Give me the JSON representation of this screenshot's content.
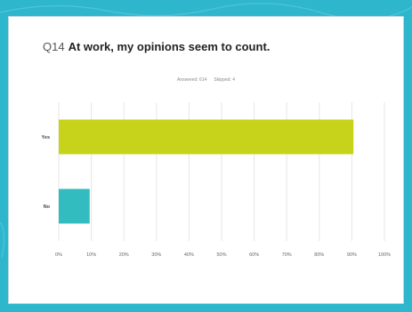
{
  "question": {
    "number": "Q14",
    "text": "At work, my opinions seem to count."
  },
  "meta": {
    "answered": "Answered: 614",
    "skipped": "Skipped: 4"
  },
  "colors": {
    "background": "#2db6cc",
    "grid": "#e6e6e6",
    "tick_label": "#666666"
  },
  "chart_data": {
    "type": "bar",
    "orientation": "horizontal",
    "title": "At work, my opinions seem to count.",
    "categories": [
      "Yes",
      "No"
    ],
    "values": [
      90.5,
      9.5
    ],
    "bar_colors": [
      "#c7d31b",
      "#33bcbf"
    ],
    "xlim": [
      0,
      100
    ],
    "x_ticks": [
      "0%",
      "10%",
      "20%",
      "30%",
      "40%",
      "50%",
      "60%",
      "70%",
      "80%",
      "90%",
      "100%"
    ],
    "grid": true,
    "legend": "none"
  }
}
